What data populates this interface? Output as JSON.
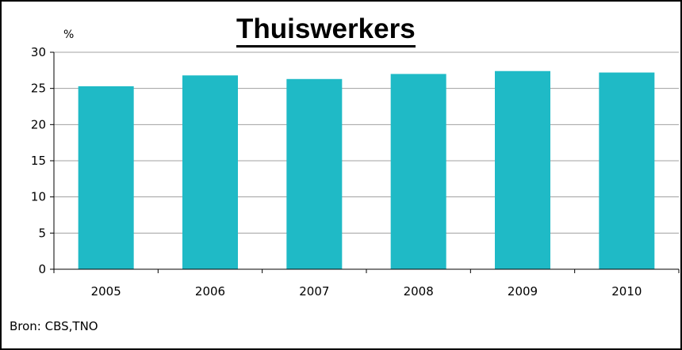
{
  "chart_data": {
    "type": "bar",
    "title": "Thuiswerkers",
    "ylabel": "%",
    "xlabel": "",
    "categories": [
      "2005",
      "2006",
      "2007",
      "2008",
      "2009",
      "2010"
    ],
    "values": [
      25.3,
      26.8,
      26.3,
      27.0,
      27.4,
      27.2
    ],
    "ylim": [
      0,
      30
    ],
    "yticks": [
      0,
      5,
      10,
      15,
      20,
      25,
      30
    ],
    "grid": true,
    "legend": "none",
    "bar_color": "#1fbac6"
  },
  "source": "Bron: CBS,TNO"
}
